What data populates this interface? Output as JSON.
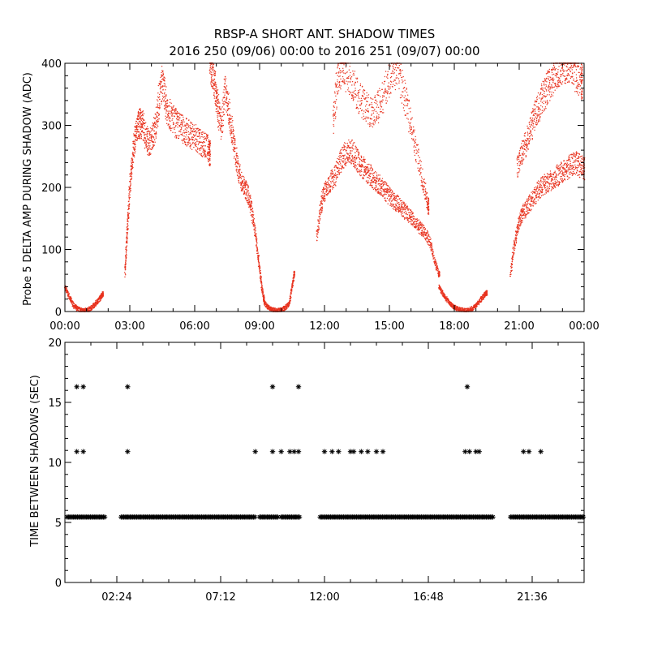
{
  "title": "RBSP-A SHORT ANT. SHADOW TIMES",
  "subtitle": "2016 250 (09/06) 00:00 to 2016 251 (09/07) 00:00",
  "colors": {
    "red_series": "#e8321e",
    "black_series": "#000000",
    "axes": "#000000"
  },
  "chart_data": [
    {
      "type": "scatter",
      "ylabel": "Probe 5 DELTA AMP DURING SHADOW (ADC)",
      "xlim": [
        0,
        24
      ],
      "ylim": [
        0,
        400
      ],
      "x_ticks": [
        "00:00",
        "03:00",
        "06:00",
        "09:00",
        "12:00",
        "15:00",
        "18:00",
        "21:00",
        "00:00"
      ],
      "y_ticks": [
        "0",
        "100",
        "200",
        "300",
        "400"
      ],
      "marker": "dot",
      "color": "#e8321e",
      "series": [
        {
          "x": [
            0.0,
            0.15,
            0.3,
            0.45,
            0.6,
            0.75,
            0.9,
            1.05,
            1.2,
            1.35,
            1.5,
            1.65,
            1.75
          ],
          "y": [
            40,
            28,
            16,
            8,
            4,
            2,
            1,
            2,
            5,
            10,
            16,
            22,
            28
          ]
        },
        {
          "x": [
            2.78,
            2.85,
            2.92,
            3.0,
            3.1,
            3.2,
            3.3,
            3.4,
            3.5,
            3.6,
            3.75,
            3.9,
            4.05,
            4.2,
            4.35,
            4.5,
            4.65,
            4.8,
            5.0,
            5.2,
            5.4,
            5.6,
            5.8,
            6.0,
            6.2,
            6.4,
            6.6,
            6.7
          ],
          "y": [
            60,
            110,
            150,
            200,
            240,
            270,
            290,
            300,
            305,
            300,
            280,
            270,
            280,
            300,
            340,
            370,
            340,
            320,
            310,
            300,
            295,
            290,
            285,
            280,
            275,
            270,
            265,
            255
          ]
        },
        {
          "x": [
            6.7,
            6.8,
            6.9,
            7.0,
            7.1,
            7.25,
            7.4,
            7.55,
            7.7,
            7.85,
            8.0,
            8.15,
            8.3,
            8.45,
            8.6,
            8.75,
            8.9,
            9.0,
            9.1,
            9.2
          ],
          "y": [
            400,
            390,
            370,
            350,
            320,
            300,
            360,
            330,
            300,
            260,
            230,
            210,
            200,
            190,
            170,
            140,
            100,
            70,
            40,
            20
          ]
        },
        {
          "x": [
            9.2,
            9.35,
            9.5,
            9.65,
            9.8,
            9.95,
            10.1,
            10.25,
            10.4,
            10.5,
            10.6
          ],
          "y": [
            15,
            8,
            4,
            2,
            1,
            2,
            4,
            8,
            15,
            40,
            60
          ]
        },
        {
          "x": [
            11.65,
            11.8,
            11.95,
            12.1,
            12.3,
            12.5,
            12.7,
            12.9,
            13.1,
            13.3,
            13.5,
            13.7,
            13.9,
            14.1,
            14.3,
            14.5,
            14.7,
            14.9,
            15.1,
            15.3,
            15.5,
            15.7,
            15.9,
            16.1,
            16.3,
            16.5,
            16.7,
            16.9,
            17.1,
            17.3
          ],
          "y": [
            120,
            160,
            190,
            200,
            210,
            220,
            240,
            250,
            260,
            255,
            245,
            235,
            228,
            220,
            210,
            205,
            198,
            190,
            182,
            176,
            170,
            162,
            155,
            148,
            140,
            132,
            125,
            110,
            80,
            60
          ]
        },
        {
          "x": [
            12.4,
            12.6,
            12.8,
            13.0,
            13.3,
            13.6,
            13.9,
            14.2,
            14.5,
            14.8,
            15.1,
            15.4,
            15.7,
            16.0,
            16.3,
            16.6,
            16.8
          ],
          "y": [
            310,
            370,
            400,
            385,
            365,
            345,
            330,
            320,
            330,
            355,
            380,
            390,
            350,
            300,
            250,
            200,
            170
          ]
        },
        {
          "x": [
            17.3,
            17.45,
            17.6,
            17.75,
            17.9,
            18.05,
            18.2,
            18.35,
            18.5,
            18.65,
            18.8,
            18.95,
            19.1,
            19.25,
            19.4,
            19.5
          ],
          "y": [
            40,
            30,
            22,
            15,
            10,
            6,
            4,
            2,
            1,
            2,
            4,
            8,
            14,
            20,
            26,
            30
          ]
        },
        {
          "x": [
            20.6,
            20.75,
            20.9,
            21.05,
            21.2,
            21.4,
            21.6,
            21.8,
            22.0,
            22.2,
            22.4,
            22.6,
            22.8,
            23.0,
            23.2,
            23.4,
            23.6,
            23.8,
            24.0
          ],
          "y": [
            60,
            100,
            130,
            150,
            160,
            170,
            180,
            190,
            200,
            205,
            210,
            215,
            220,
            225,
            230,
            235,
            240,
            235,
            230
          ]
        },
        {
          "x": [
            20.9,
            21.1,
            21.3,
            21.5,
            21.7,
            21.9,
            22.1,
            22.3,
            22.5,
            22.7,
            22.9,
            23.1,
            23.3,
            23.5,
            23.7,
            23.9
          ],
          "y": [
            230,
            250,
            270,
            290,
            310,
            330,
            345,
            360,
            375,
            385,
            395,
            400,
            398,
            390,
            380,
            370
          ]
        }
      ]
    },
    {
      "type": "scatter",
      "ylabel": "TIME BETWEEN SHADOWS (SEC)",
      "xlim": [
        0,
        24
      ],
      "ylim": [
        0,
        20
      ],
      "x_ticks": [
        "02:24",
        "07:12",
        "12:00",
        "16:48",
        "21:36"
      ],
      "y_ticks": [
        "0",
        "5",
        "10",
        "15",
        "20"
      ],
      "marker": "asterisk",
      "color": "#000000",
      "series": [
        {
          "name": "",
          "values": [
            [
              0.55,
              16.3
            ],
            [
              0.85,
              16.3
            ],
            [
              2.9,
              16.3
            ],
            [
              9.6,
              16.3
            ],
            [
              10.8,
              16.3
            ],
            [
              18.6,
              16.3
            ],
            [
              0.55,
              10.9
            ],
            [
              0.85,
              10.9
            ],
            [
              2.9,
              10.9
            ],
            [
              8.8,
              10.9
            ],
            [
              9.6,
              10.9
            ],
            [
              10.0,
              10.9
            ],
            [
              10.4,
              10.9
            ],
            [
              10.6,
              10.9
            ],
            [
              10.8,
              10.9
            ],
            [
              12.0,
              10.9
            ],
            [
              12.35,
              10.9
            ],
            [
              12.65,
              10.9
            ],
            [
              13.2,
              10.9
            ],
            [
              13.35,
              10.9
            ],
            [
              13.7,
              10.9
            ],
            [
              14.0,
              10.9
            ],
            [
              14.4,
              10.9
            ],
            [
              14.7,
              10.9
            ],
            [
              18.5,
              10.9
            ],
            [
              18.7,
              10.9
            ],
            [
              19.0,
              10.9
            ],
            [
              19.15,
              10.9
            ],
            [
              21.2,
              10.9
            ],
            [
              21.45,
              10.9
            ],
            [
              22.0,
              10.9
            ]
          ]
        }
      ],
      "baseline": {
        "y": 5.45,
        "segments": [
          [
            0.1,
            1.9
          ],
          [
            2.6,
            8.8
          ],
          [
            9.0,
            9.9
          ],
          [
            10.0,
            10.85
          ],
          [
            11.8,
            19.8
          ],
          [
            20.6,
            24.0
          ]
        ]
      }
    }
  ]
}
